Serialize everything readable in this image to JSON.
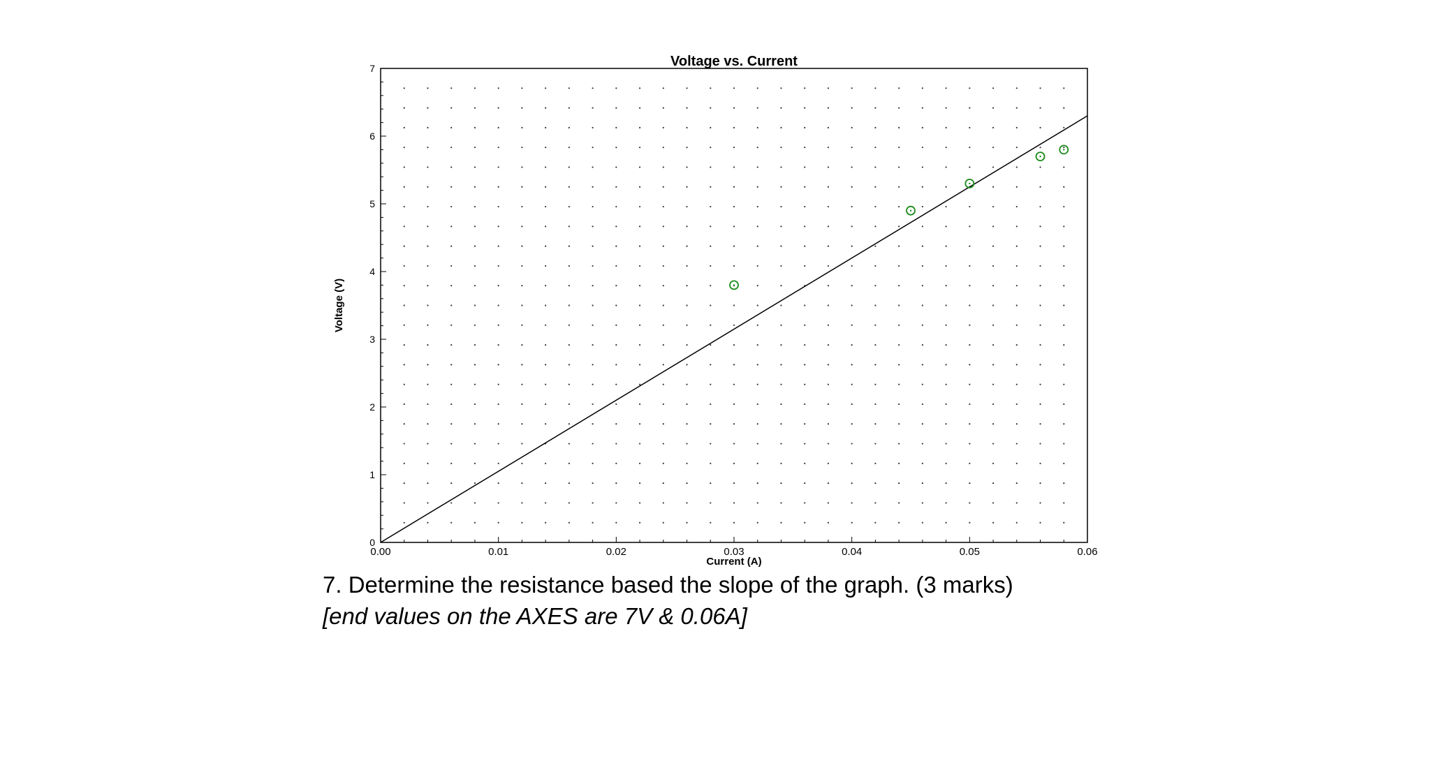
{
  "chart_data": {
    "type": "scatter",
    "title": "Voltage vs. Current",
    "xlabel": "Current (A)",
    "ylabel": "Voltage (V)",
    "xlim": [
      0,
      0.06
    ],
    "ylim": [
      0,
      7
    ],
    "x_ticks": [
      "0.00",
      "0.01",
      "0.02",
      "0.03",
      "0.04",
      "0.05",
      "0.06"
    ],
    "y_ticks": [
      "0",
      "1",
      "2",
      "3",
      "4",
      "5",
      "6",
      "7"
    ],
    "grid": "dotted",
    "points": [
      {
        "x": 0.03,
        "y": 3.8
      },
      {
        "x": 0.045,
        "y": 4.9
      },
      {
        "x": 0.05,
        "y": 5.3
      },
      {
        "x": 0.056,
        "y": 5.7
      },
      {
        "x": 0.058,
        "y": 5.8
      }
    ],
    "point_color": "#1a8a1a",
    "fit_line": {
      "x": [
        0,
        0.06
      ],
      "y": [
        0,
        6.3
      ]
    },
    "line_color": "#000000"
  },
  "question": {
    "text": "7.  Determine the resistance based the slope of the graph. (3 marks)",
    "note": "[end values on the AXES are 7V & 0.06A]"
  }
}
